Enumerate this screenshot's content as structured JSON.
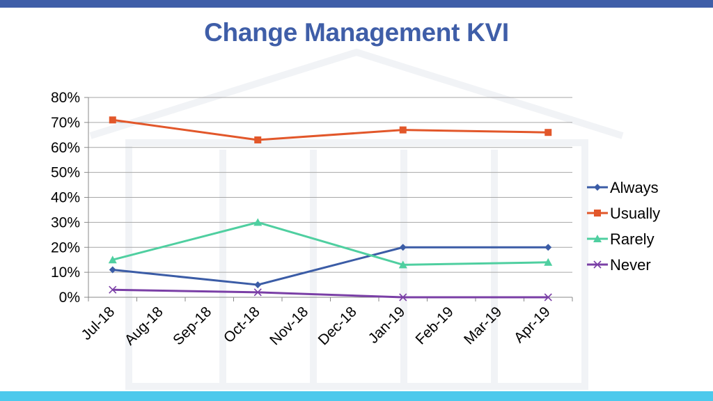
{
  "slide": {
    "title": "Change Management KVI",
    "top_bar_color": "#3f5ea8",
    "bottom_bar_color": "#4cc9ec",
    "watermark_icon": "building-icon"
  },
  "chart_data": {
    "type": "line",
    "title": "Change Management KVI",
    "xlabel": "",
    "ylabel": "",
    "categories": [
      "Jul-18",
      "Aug-18",
      "Sep-18",
      "Oct-18",
      "Nov-18",
      "Dec-18",
      "Jan-19",
      "Feb-19",
      "Mar-19",
      "Apr-19"
    ],
    "yticks": [
      "0%",
      "10%",
      "20%",
      "30%",
      "40%",
      "50%",
      "60%",
      "70%",
      "80%"
    ],
    "ylim": [
      0,
      80
    ],
    "grid": true,
    "legend_position": "right",
    "series": [
      {
        "name": "Always",
        "color": "#3b5ca6",
        "marker": "diamond",
        "values": [
          11,
          null,
          null,
          5,
          null,
          null,
          20,
          null,
          null,
          20
        ]
      },
      {
        "name": "Usually",
        "color": "#e2572a",
        "marker": "square",
        "values": [
          71,
          null,
          null,
          63,
          null,
          null,
          67,
          null,
          null,
          66
        ]
      },
      {
        "name": "Rarely",
        "color": "#4fcfa0",
        "marker": "triangle",
        "values": [
          15,
          null,
          null,
          30,
          null,
          null,
          13,
          null,
          null,
          14
        ]
      },
      {
        "name": "Never",
        "color": "#7a3fa6",
        "marker": "x",
        "values": [
          3,
          null,
          null,
          2,
          null,
          null,
          0,
          null,
          null,
          0
        ]
      }
    ]
  }
}
